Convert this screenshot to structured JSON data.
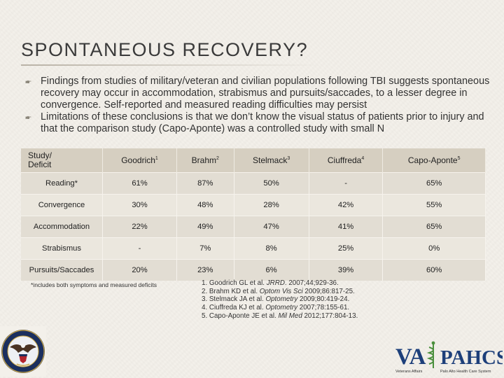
{
  "title": "SPONTANEOUS RECOVERY?",
  "bullets": [
    "Findings from studies of military/veteran and civilian populations following TBI suggests spontaneous recovery may occur in accommodation, strabismus and pursuits/saccades, to a lesser degree in convergence. Self-reported and measured reading difficulties may persist",
    "Limitations of these conclusions is that we don’t know the visual status of patients prior to injury and that the comparison study (Capo-Aponte) was a controlled study with small N"
  ],
  "table": {
    "header_study": "Study/",
    "header_deficit": "Deficit",
    "columns": [
      {
        "name": "Goodrich",
        "sup": "1"
      },
      {
        "name": "Brahm",
        "sup": "2"
      },
      {
        "name": "Stelmack",
        "sup": "3"
      },
      {
        "name": "Ciuffreda",
        "sup": "4"
      },
      {
        "name": "Capo-Aponte",
        "sup": "5"
      }
    ],
    "rows": [
      {
        "label": "Reading*",
        "values": [
          "61%",
          "87%",
          "50%",
          "-",
          "65%"
        ]
      },
      {
        "label": "Convergence",
        "values": [
          "30%",
          "48%",
          "28%",
          "42%",
          "55%"
        ]
      },
      {
        "label": "Accommodation",
        "values": [
          "22%",
          "49%",
          "47%",
          "41%",
          "65%"
        ]
      },
      {
        "label": "Strabismus",
        "values": [
          "-",
          "7%",
          "8%",
          "25%",
          "0%"
        ]
      },
      {
        "label": "Pursuits/Saccades",
        "values": [
          "20%",
          "23%",
          "6%",
          "39%",
          "60%"
        ]
      }
    ]
  },
  "footnote": "*includes both symptoms and measured deficits",
  "references": [
    {
      "pre": "1. Goodrich GL et al. ",
      "journal": "JRRD",
      "post": ". 2007;44;929-36."
    },
    {
      "pre": "2. Brahm KD et al. ",
      "journal": "Optom Vis Sci",
      "post": " 2009;86:817-25."
    },
    {
      "pre": "3. Stelmack JA et al. ",
      "journal": "Optometry",
      "post": " 2009;80:419-24."
    },
    {
      "pre": "4. Ciuffreda KJ et al. ",
      "journal": "Optometry",
      "post": " 2007;78:155-61."
    },
    {
      "pre": "5. Capo-Aponte JE et al. ",
      "journal": "Mil Med",
      "post": " 2012;177:804-13."
    }
  ],
  "logo": {
    "va": "VA",
    "pahcs": "PAHCS",
    "sub_left": "Veterans Affairs",
    "sub_right": "Palo Alto Health Care System"
  },
  "colors": {
    "header_fill": "#d6cfc1",
    "row_odd": "#e2ddd3",
    "row_even": "#ebe7de",
    "va_blue": "#1d3f7a",
    "caduceus_green": "#4a8f3c"
  },
  "icons": {
    "bullet": "bullet-glyph-icon",
    "seal": "va-seal-icon",
    "caduceus": "caduceus-icon"
  }
}
